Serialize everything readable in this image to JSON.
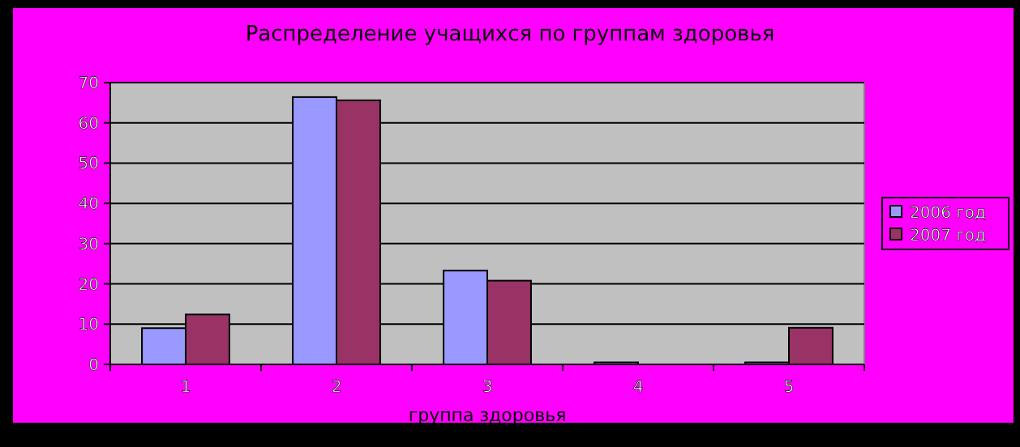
{
  "chart_data": {
    "type": "bar",
    "title": "Распределение учащихся по группам здоровья",
    "xlabel": "группа здоровья",
    "categories": [
      "1",
      "2",
      "3",
      "4",
      "5"
    ],
    "series": [
      {
        "name": "2006 год",
        "color": "#9999ff",
        "values": [
          9,
          66.4,
          23.3,
          0.5,
          0.5
        ]
      },
      {
        "name": "2007 год",
        "color": "#993366",
        "values": [
          12.4,
          65.6,
          20.8,
          0,
          9.1
        ]
      }
    ],
    "ylim": [
      0,
      70
    ],
    "yticks": [
      0,
      10,
      20,
      30,
      40,
      50,
      60,
      70
    ],
    "grid": "y",
    "legend": "right"
  }
}
